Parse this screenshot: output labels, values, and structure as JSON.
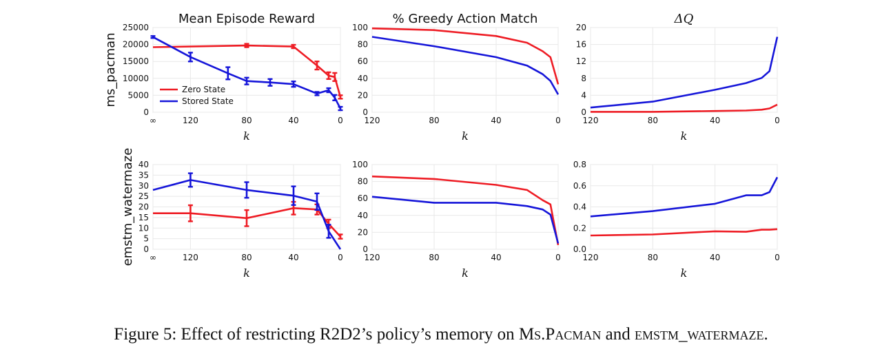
{
  "colors": {
    "zero_state": "#ee1c24",
    "stored_state": "#1515d9"
  },
  "column_titles": [
    "Mean Episode Reward",
    "% Greedy Action Match",
    "ΔQ"
  ],
  "row_labels": [
    "ms_pacman",
    "emstm_watermaze"
  ],
  "legend": [
    "Zero State",
    "Stored State"
  ],
  "caption": {
    "prefix": "Figure 5: Effect of restricting R2D2’s policy’s memory on ",
    "name1": "Ms.Pacman",
    "mid": " and ",
    "name2": "emstm_watermaze",
    "suffix": "."
  },
  "chart_data": [
    {
      "id": "pacman-reward",
      "type": "line",
      "row": 0,
      "col": 0,
      "title": "Mean Episode Reward",
      "ylabel": "ms_pacman",
      "xlabel": "k",
      "xtick_labels": [
        "∞",
        "120",
        "80",
        "40",
        "0"
      ],
      "ylim": [
        0,
        25000
      ],
      "yticks": [
        0,
        5000,
        10000,
        15000,
        20000,
        25000
      ],
      "legend_position": "lower-left",
      "grid": true,
      "series": [
        {
          "name": "Zero State",
          "x": [
            "∞",
            80,
            40,
            20,
            10,
            5,
            0
          ],
          "values": [
            19200,
            19700,
            19400,
            13800,
            10800,
            10400,
            4500
          ],
          "error": [
            0,
            500,
            500,
            1200,
            1000,
            1200,
            500
          ]
        },
        {
          "name": "Stored State",
          "x": [
            "∞",
            120,
            100,
            80,
            60,
            40,
            20,
            10,
            5,
            0
          ],
          "values": [
            22200,
            16300,
            11500,
            9200,
            8800,
            8300,
            5500,
            6500,
            4300,
            1100
          ],
          "error": [
            300,
            1300,
            1800,
            1000,
            1000,
            800,
            500,
            600,
            800,
            500
          ]
        }
      ]
    },
    {
      "id": "pacman-match",
      "type": "line",
      "row": 0,
      "col": 1,
      "title": "% Greedy Action Match",
      "xlabel": "k",
      "xticks": [
        120,
        80,
        40,
        0
      ],
      "ylim": [
        0,
        100
      ],
      "yticks": [
        0,
        20,
        40,
        60,
        80,
        100
      ],
      "grid": true,
      "series": [
        {
          "name": "Zero State",
          "x": [
            120,
            80,
            40,
            20,
            10,
            5,
            0
          ],
          "values": [
            99,
            97,
            90,
            82,
            72,
            65,
            33
          ]
        },
        {
          "name": "Stored State",
          "x": [
            120,
            80,
            40,
            20,
            10,
            5,
            0
          ],
          "values": [
            89,
            78,
            65,
            55,
            45,
            37,
            21
          ]
        }
      ]
    },
    {
      "id": "pacman-dq",
      "type": "line",
      "row": 0,
      "col": 2,
      "title": "ΔQ",
      "xlabel": "k",
      "xticks": [
        120,
        80,
        40,
        0
      ],
      "ylim": [
        0,
        20
      ],
      "yticks": [
        0,
        4,
        8,
        12,
        16,
        20
      ],
      "grid": true,
      "series": [
        {
          "name": "Zero State",
          "x": [
            120,
            80,
            40,
            20,
            10,
            5,
            0
          ],
          "values": [
            0.1,
            0.1,
            0.3,
            0.4,
            0.6,
            0.9,
            1.8
          ]
        },
        {
          "name": "Stored State",
          "x": [
            120,
            80,
            40,
            20,
            10,
            5,
            0
          ],
          "values": [
            1.1,
            2.5,
            5.3,
            6.9,
            8.1,
            9.7,
            17.8
          ]
        }
      ]
    },
    {
      "id": "watermaze-reward",
      "type": "line",
      "row": 1,
      "col": 0,
      "ylabel": "emstm_watermaze",
      "xlabel": "k",
      "xtick_labels": [
        "∞",
        "120",
        "80",
        "40",
        "0"
      ],
      "ylim": [
        0,
        40
      ],
      "yticks": [
        0,
        5,
        10,
        15,
        20,
        25,
        30,
        35,
        40
      ],
      "grid": true,
      "series": [
        {
          "name": "Zero State",
          "x": [
            "∞",
            120,
            80,
            40,
            20,
            10,
            0
          ],
          "values": [
            17,
            17,
            14.7,
            19.4,
            18.8,
            12,
            6
          ],
          "error": [
            0,
            3.8,
            3.8,
            3,
            2.4,
            2,
            1
          ]
        },
        {
          "name": "Stored State",
          "x": [
            "∞",
            120,
            80,
            40,
            20,
            10,
            0
          ],
          "values": [
            28,
            32.7,
            28,
            25.3,
            22.5,
            8.5,
            0
          ],
          "error": [
            0,
            3.2,
            3.7,
            4.4,
            3.9,
            3.1,
            0
          ]
        }
      ]
    },
    {
      "id": "watermaze-match",
      "type": "line",
      "row": 1,
      "col": 1,
      "xlabel": "k",
      "xticks": [
        120,
        80,
        40,
        0
      ],
      "ylim": [
        0,
        100
      ],
      "yticks": [
        0,
        20,
        40,
        60,
        80,
        100
      ],
      "grid": true,
      "series": [
        {
          "name": "Zero State",
          "x": [
            120,
            80,
            40,
            20,
            10,
            5,
            0
          ],
          "values": [
            86,
            83,
            76,
            70,
            58,
            53,
            5
          ]
        },
        {
          "name": "Stored State",
          "x": [
            120,
            80,
            40,
            20,
            10,
            5,
            0
          ],
          "values": [
            62,
            55,
            55,
            51,
            47,
            41,
            7
          ]
        }
      ]
    },
    {
      "id": "watermaze-dq",
      "type": "line",
      "row": 1,
      "col": 2,
      "xlabel": "k",
      "xticks": [
        120,
        80,
        40,
        0
      ],
      "ylim": [
        0,
        0.8
      ],
      "yticks": [
        0,
        0.2,
        0.4,
        0.6,
        0.8
      ],
      "grid": true,
      "series": [
        {
          "name": "Zero State",
          "x": [
            120,
            80,
            40,
            20,
            10,
            5,
            0
          ],
          "values": [
            0.13,
            0.14,
            0.17,
            0.165,
            0.185,
            0.185,
            0.19
          ]
        },
        {
          "name": "Stored State",
          "x": [
            120,
            80,
            40,
            20,
            10,
            5,
            0
          ],
          "values": [
            0.31,
            0.36,
            0.43,
            0.51,
            0.51,
            0.54,
            0.68
          ]
        }
      ]
    }
  ]
}
